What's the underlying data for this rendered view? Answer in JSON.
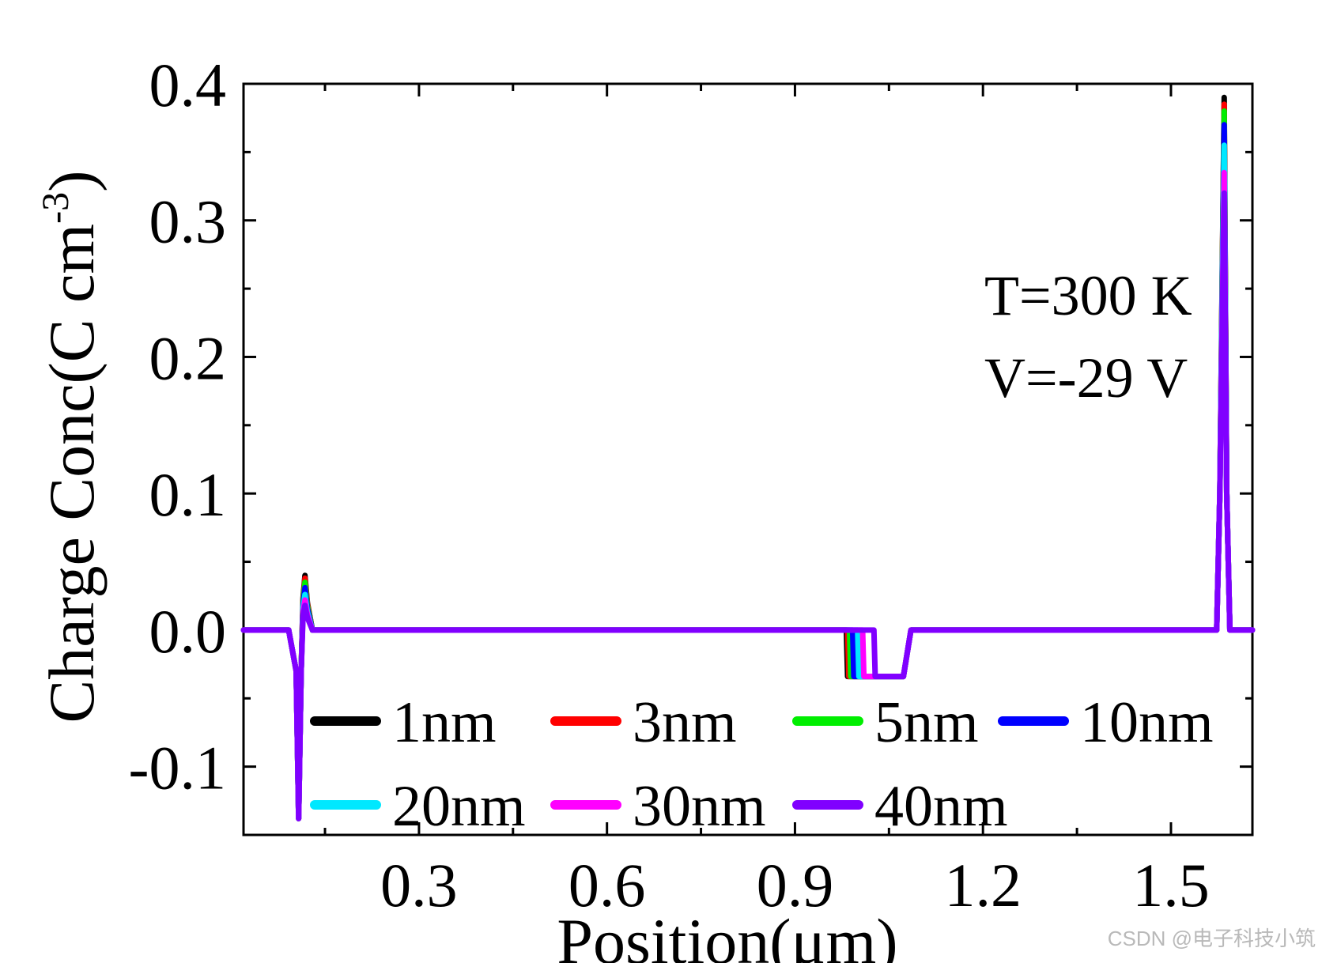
{
  "chart_data": {
    "type": "line",
    "title": "",
    "xlabel": "Position(μm)",
    "ylabel": "Charge Conc(C cm",
    "ylabel_superscript": "-3",
    "ylabel_suffix": ")",
    "xlim": [
      0.02,
      1.63
    ],
    "ylim": [
      -0.15,
      0.4
    ],
    "x_ticks": [
      {
        "value": 0.3,
        "label": "0.3"
      },
      {
        "value": 0.6,
        "label": "0.6"
      },
      {
        "value": 0.9,
        "label": "0.9"
      },
      {
        "value": 1.2,
        "label": "1.2"
      },
      {
        "value": 1.5,
        "label": "1.5"
      }
    ],
    "y_ticks": [
      {
        "value": 0.4,
        "label": "0.4"
      },
      {
        "value": 0.3,
        "label": "0.3"
      },
      {
        "value": 0.2,
        "label": "0.2"
      },
      {
        "value": 0.1,
        "label": "0.1"
      },
      {
        "value": 0.0,
        "label": "0.0"
      },
      {
        "value": -0.1,
        "label": "-0.1"
      }
    ],
    "annotations": [
      "T=300 K",
      "V=-29 V"
    ],
    "legend_position": "bottom-inside",
    "series": [
      {
        "name": "1nm",
        "color": "#000000",
        "peak1": 0.04,
        "dip_start": 0.982,
        "peak2": 0.39
      },
      {
        "name": "3nm",
        "color": "#ff0000",
        "peak1": 0.038,
        "dip_start": 0.984,
        "peak2": 0.385
      },
      {
        "name": "5nm",
        "color": "#00ee00",
        "peak1": 0.035,
        "dip_start": 0.987,
        "peak2": 0.38
      },
      {
        "name": "10nm",
        "color": "#0000ff",
        "peak1": 0.031,
        "dip_start": 0.992,
        "peak2": 0.37
      },
      {
        "name": "20nm",
        "color": "#00e8ff",
        "peak1": 0.026,
        "dip_start": 1.0,
        "peak2": 0.355
      },
      {
        "name": "30nm",
        "color": "#ff00ff",
        "peak1": 0.022,
        "dip_start": 1.008,
        "peak2": 0.335
      },
      {
        "name": "40nm",
        "color": "#8000ff",
        "peak1": 0.018,
        "dip_start": 1.026,
        "peak2": 0.32
      }
    ],
    "common": {
      "dip1_x": 0.108,
      "dip1_value": -0.138,
      "peak1_x": 0.118,
      "dip2_end": 1.085,
      "dip2_value": -0.034,
      "peak2_x": 1.585
    }
  },
  "watermark": "CSDN @电子科技小筑"
}
